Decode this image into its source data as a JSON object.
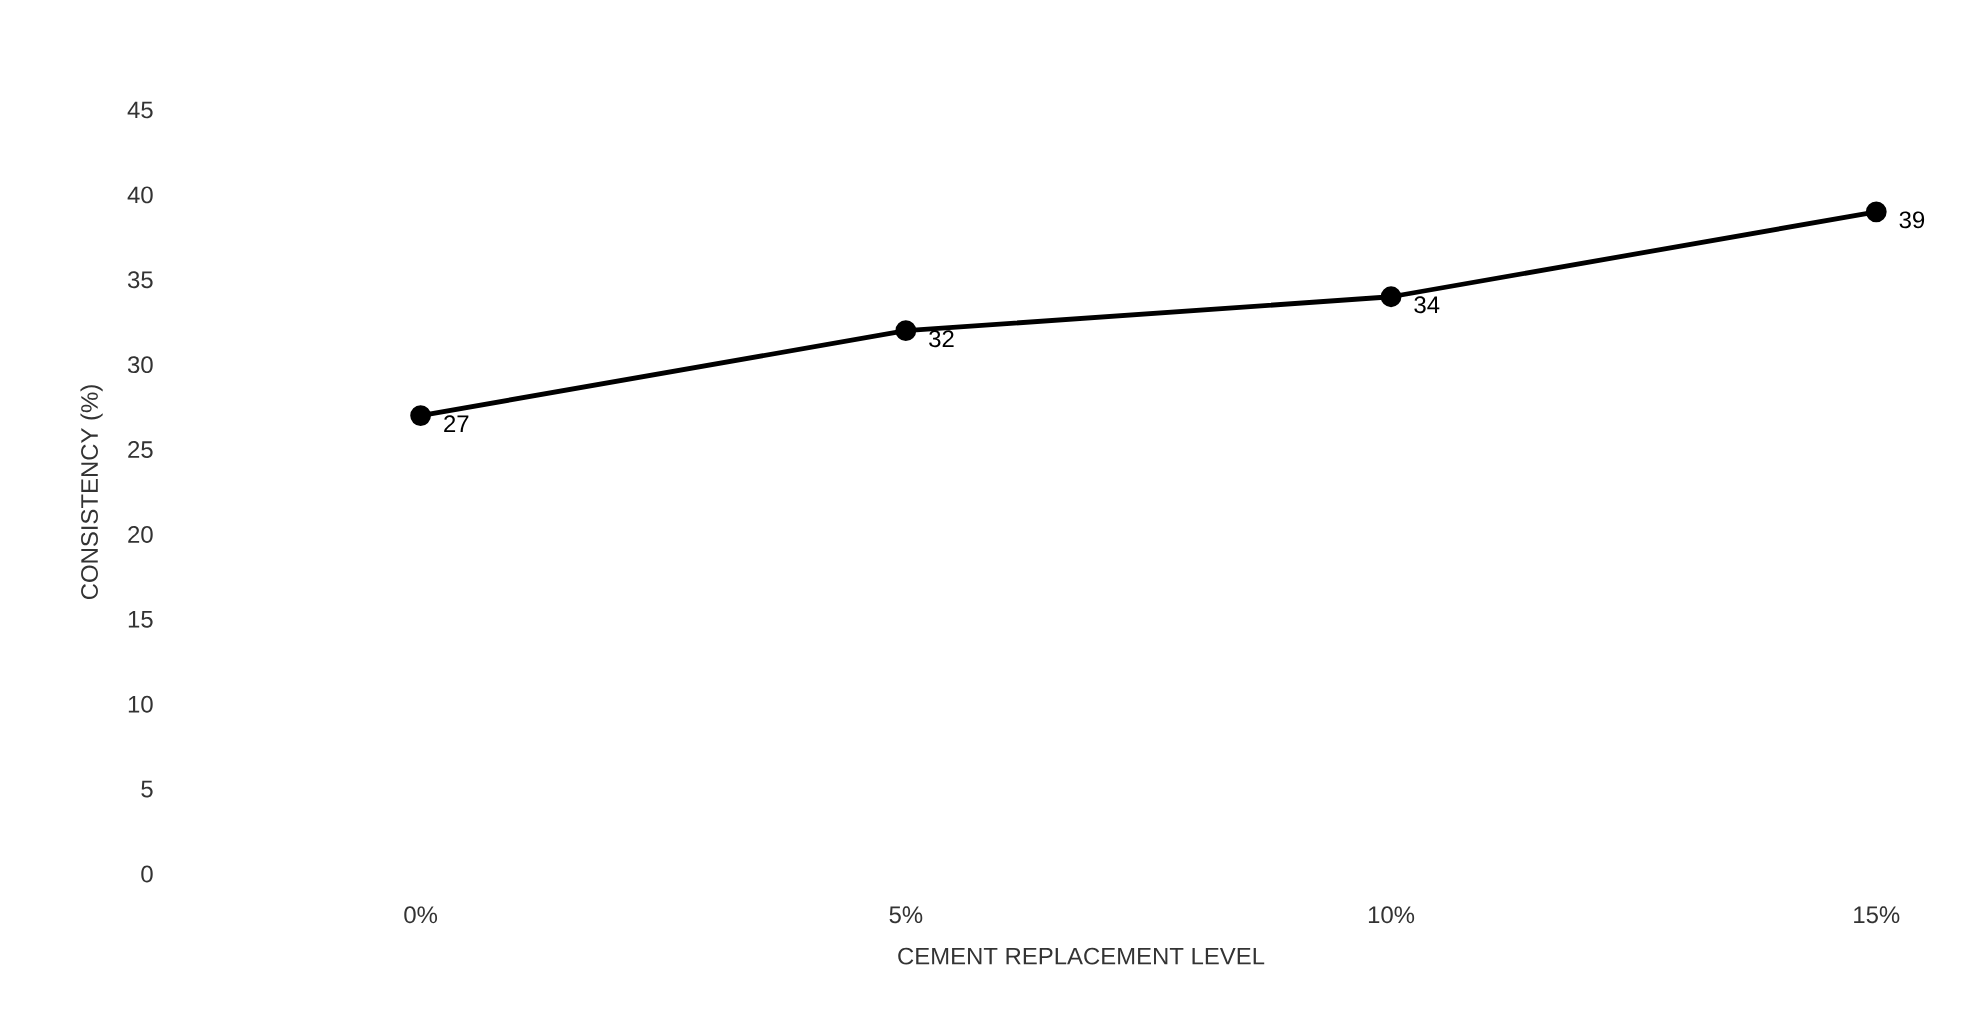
{
  "chart_data": {
    "type": "line",
    "xlabel": "CEMENT REPLACEMENT LEVEL",
    "ylabel": "CONSISTENCY (%)",
    "categories": [
      "0%",
      "5%",
      "10%",
      "15%"
    ],
    "values": [
      27,
      32,
      34,
      39
    ],
    "color": "#000000",
    "marker": "circle",
    "line_style": "solid",
    "data_labels": true,
    "ylim": [
      0,
      45
    ],
    "yticks": [
      0,
      5,
      10,
      15,
      20,
      25,
      30,
      35,
      40,
      45
    ],
    "grid": false
  }
}
